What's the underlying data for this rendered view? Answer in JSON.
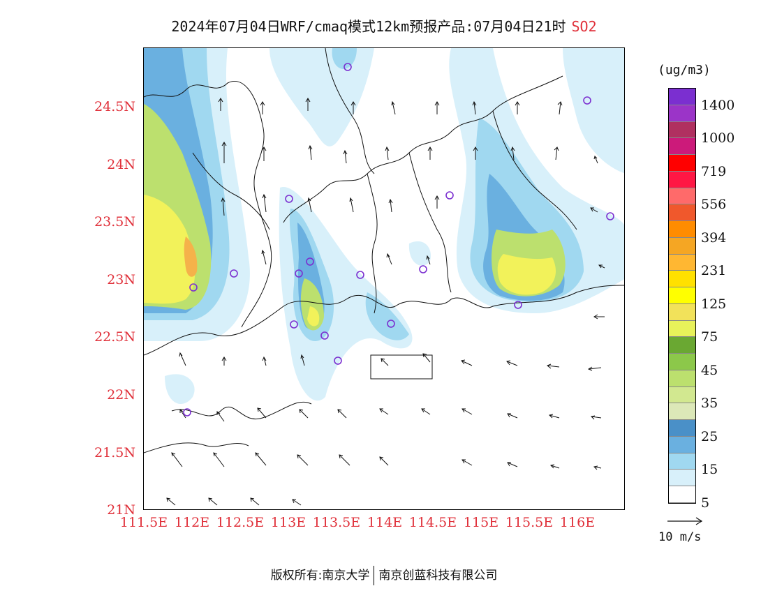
{
  "header": {
    "title": "2024年07月04日WRF/cmaq模式12km预报产品:07月04日21时",
    "pollutant": "SO2"
  },
  "axes": {
    "lat_labels": [
      "24.5N",
      "24N",
      "23.5N",
      "23N",
      "22.5N",
      "22N",
      "21.5N",
      "21N"
    ],
    "lon_labels": [
      "111.5E",
      "112E",
      "112.5E",
      "113E",
      "113.5E",
      "114E",
      "114.5E",
      "115E",
      "115.5E",
      "116E"
    ]
  },
  "legend": {
    "unit": "(ug/m3)",
    "labels": [
      "1400",
      "1000",
      "719",
      "556",
      "394",
      "231",
      "125",
      "75",
      "45",
      "35",
      "25",
      "15",
      "5"
    ],
    "colors": [
      "#7b2fd0",
      "#9b34c8",
      "#b03060",
      "#cc1a7a",
      "#ff0000",
      "#ff1744",
      "#ff6a6a",
      "#f0582c",
      "#ff8c00",
      "#f5a623",
      "#ffb732",
      "#ffe100",
      "#ffff00",
      "#f2e25a",
      "#e8f25a",
      "#6aa832",
      "#8cc84a",
      "#bce06e",
      "#d2e890",
      "#dce8b8",
      "#4a90c8",
      "#6ab0e0",
      "#a0d8f0",
      "#d8f0fa",
      "#ffffff"
    ]
  },
  "vector_legend": {
    "label": "10 m/s"
  },
  "footer": {
    "left": "版权所有:南京大学",
    "right": "南京创蓝科技有限公司"
  }
}
